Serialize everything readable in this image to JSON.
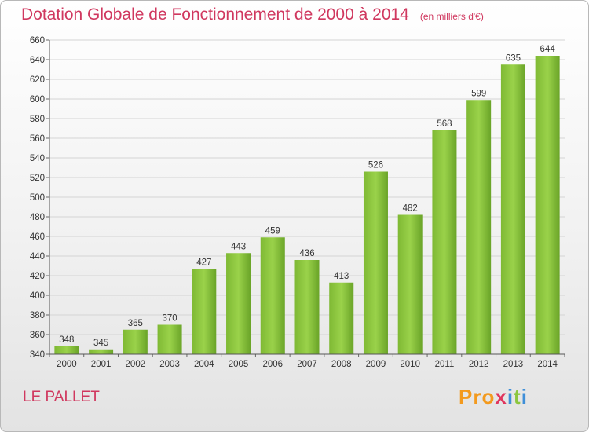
{
  "title": "Dotation Globale de Fonctionnement de 2000 à 2014",
  "unit_note": "(en milliers d'€)",
  "commune": "LE PALLET",
  "logo": {
    "p1": "Pro",
    "p2": "x",
    "p3": "i",
    "p4": "t",
    "p5": "i"
  },
  "colors": {
    "bar": "#8cc63f",
    "bar_dark": "#6aa428",
    "title": "#d0385f"
  },
  "chart_data": {
    "type": "bar",
    "title": "Dotation Globale de Fonctionnement de 2000 à 2014",
    "xlabel": "",
    "ylabel": "",
    "categories": [
      "2000",
      "2001",
      "2002",
      "2003",
      "2004",
      "2005",
      "2006",
      "2007",
      "2008",
      "2009",
      "2010",
      "2011",
      "2012",
      "2013",
      "2014"
    ],
    "values": [
      348,
      345,
      365,
      370,
      427,
      443,
      459,
      436,
      413,
      526,
      482,
      568,
      599,
      635,
      644
    ],
    "ylim": [
      340,
      660
    ],
    "ytick_step": 20,
    "grid": true
  }
}
